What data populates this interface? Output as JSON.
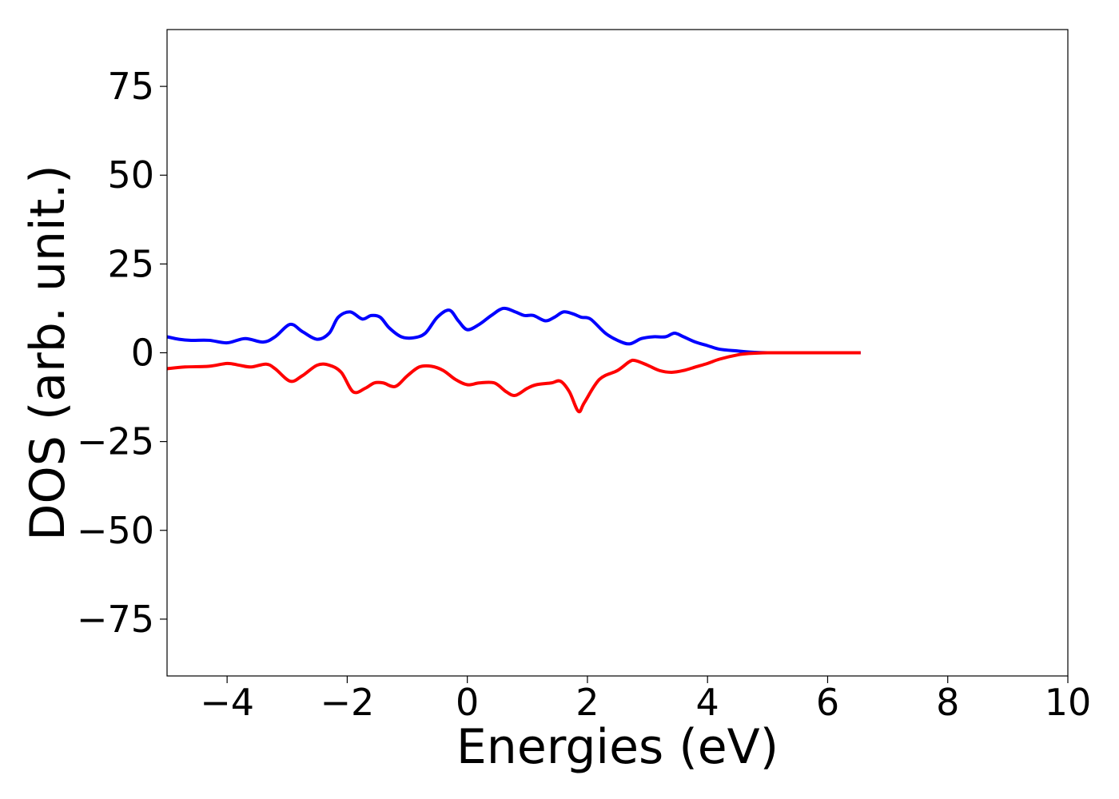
{
  "chart_data": {
    "type": "line",
    "title": "",
    "xlabel": "Energies (eV)",
    "ylabel": "DOS (arb. unit.)",
    "xlim": [
      -5,
      10
    ],
    "ylim": [
      -91,
      91
    ],
    "xticks": [
      -4,
      -2,
      0,
      2,
      4,
      6,
      8,
      10
    ],
    "yticks": [
      -75,
      -50,
      -25,
      0,
      25,
      50,
      75
    ],
    "xtick_labels": [
      "−4",
      "−2",
      "0",
      "2",
      "4",
      "6",
      "8",
      "10"
    ],
    "ytick_labels": [
      "−75",
      "−50",
      "−25",
      "0",
      "25",
      "50",
      "75"
    ],
    "grid": false,
    "legend": "none",
    "series": [
      {
        "color": "#0000ff",
        "x": [
          -5.0,
          -4.8,
          -4.6,
          -4.3,
          -4.0,
          -3.7,
          -3.4,
          -3.2,
          -2.95,
          -2.75,
          -2.5,
          -2.3,
          -2.15,
          -1.95,
          -1.75,
          -1.6,
          -1.45,
          -1.3,
          -1.1,
          -0.9,
          -0.7,
          -0.5,
          -0.3,
          -0.15,
          0.0,
          0.2,
          0.4,
          0.6,
          0.8,
          0.95,
          1.1,
          1.3,
          1.45,
          1.6,
          1.75,
          1.9,
          2.05,
          2.3,
          2.5,
          2.7,
          2.9,
          3.1,
          3.3,
          3.45,
          3.6,
          3.8,
          4.0,
          4.2,
          4.5,
          4.7,
          5.0,
          5.5,
          6.0,
          6.55
        ],
        "y": [
          4.5,
          3.8,
          3.5,
          3.5,
          2.8,
          4.0,
          3.0,
          4.5,
          8.0,
          6.0,
          3.8,
          5.5,
          10.0,
          11.5,
          9.5,
          10.5,
          10.0,
          7.0,
          4.5,
          4.2,
          5.5,
          10.0,
          12.0,
          9.0,
          6.5,
          8.0,
          10.5,
          12.5,
          11.5,
          10.5,
          10.5,
          9.0,
          10.0,
          11.5,
          11.0,
          10.0,
          9.5,
          5.5,
          3.5,
          2.5,
          4.0,
          4.5,
          4.5,
          5.5,
          4.5,
          3.0,
          2.0,
          1.0,
          0.5,
          0.2,
          0.0,
          0.0,
          0.0,
          0.0
        ]
      },
      {
        "color": "#ff0000",
        "x": [
          -5.0,
          -4.7,
          -4.3,
          -4.0,
          -3.8,
          -3.6,
          -3.35,
          -3.2,
          -2.95,
          -2.75,
          -2.5,
          -2.3,
          -2.1,
          -1.9,
          -1.7,
          -1.55,
          -1.4,
          -1.2,
          -1.0,
          -0.8,
          -0.6,
          -0.4,
          -0.2,
          0.0,
          0.2,
          0.45,
          0.65,
          0.8,
          1.0,
          1.15,
          1.4,
          1.55,
          1.7,
          1.85,
          1.95,
          2.2,
          2.5,
          2.7,
          2.8,
          3.0,
          3.2,
          3.4,
          3.6,
          3.8,
          4.0,
          4.2,
          4.5,
          4.7,
          5.0,
          5.5,
          6.0,
          6.55
        ],
        "y": [
          -4.5,
          -4.0,
          -3.8,
          -3.0,
          -3.5,
          -4.0,
          -3.2,
          -4.5,
          -8.0,
          -6.5,
          -3.5,
          -3.5,
          -5.5,
          -11.0,
          -10.0,
          -8.5,
          -8.5,
          -9.5,
          -6.5,
          -4.0,
          -3.8,
          -5.0,
          -7.5,
          -9.0,
          -8.5,
          -8.5,
          -11.0,
          -12.0,
          -10.0,
          -9.0,
          -8.5,
          -8.0,
          -11.0,
          -16.5,
          -14.0,
          -7.5,
          -5.0,
          -2.5,
          -2.2,
          -3.5,
          -5.0,
          -5.5,
          -5.0,
          -4.0,
          -3.0,
          -1.8,
          -0.6,
          -0.2,
          0.0,
          0.0,
          0.0,
          0.0
        ]
      }
    ]
  }
}
